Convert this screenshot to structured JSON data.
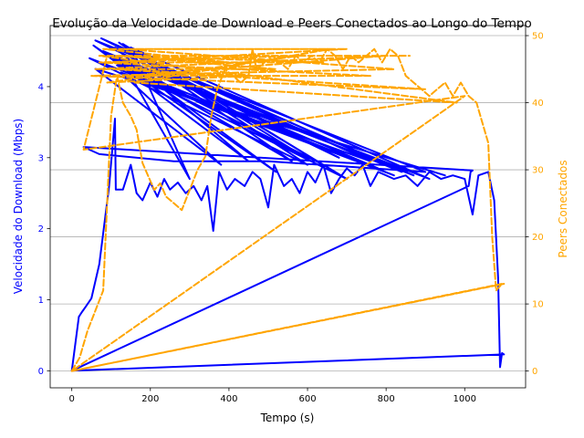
{
  "chart_data": {
    "type": "line",
    "title": "Evolução da Velocidade de Download e Peers Conectados ao Longo do Tempo",
    "xlabel": "Tempo (s)",
    "ylabel": "Velocidade do Download (Mbps)",
    "y2label": "Peers Conectados",
    "xlim": [
      -55,
      1155
    ],
    "ylim": [
      -0.24,
      4.86
    ],
    "y2lim": [
      -2.5,
      51.5
    ],
    "x_ticks": [
      0,
      200,
      400,
      600,
      800,
      1000
    ],
    "y_ticks": [
      0,
      1,
      2,
      3,
      4
    ],
    "y2_ticks": [
      0,
      10,
      20,
      30,
      40,
      50
    ],
    "grid": "horizontal, right axis",
    "colors": {
      "speed": "#0000ff",
      "peers": "#ffa500",
      "grid": "#b0b0b0"
    },
    "series": [
      {
        "key": "speed",
        "axis": "left",
        "style": "solid",
        "points": [
          [
            0,
            0.0
          ],
          [
            18,
            0.76
          ],
          [
            25,
            0.82
          ],
          [
            35,
            0.9
          ],
          [
            50,
            1.02
          ],
          [
            70,
            1.5
          ],
          [
            95,
            2.6
          ],
          [
            110,
            3.55
          ],
          [
            112,
            2.55
          ],
          [
            130,
            2.55
          ],
          [
            150,
            2.9
          ],
          [
            165,
            2.5
          ],
          [
            180,
            2.4
          ],
          [
            200,
            2.65
          ],
          [
            218,
            2.45
          ],
          [
            235,
            2.7
          ],
          [
            250,
            2.55
          ],
          [
            270,
            2.65
          ],
          [
            290,
            2.5
          ],
          [
            310,
            2.6
          ],
          [
            330,
            2.4
          ],
          [
            345,
            2.6
          ],
          [
            360,
            1.97
          ],
          [
            375,
            2.8
          ],
          [
            395,
            2.55
          ],
          [
            415,
            2.7
          ],
          [
            440,
            2.6
          ],
          [
            460,
            2.8
          ],
          [
            480,
            2.7
          ],
          [
            500,
            2.3
          ],
          [
            515,
            2.9
          ],
          [
            540,
            2.6
          ],
          [
            560,
            2.7
          ],
          [
            580,
            2.5
          ],
          [
            600,
            2.8
          ],
          [
            620,
            2.65
          ],
          [
            640,
            2.9
          ],
          [
            660,
            2.5
          ],
          [
            680,
            2.7
          ],
          [
            700,
            2.85
          ],
          [
            720,
            2.75
          ],
          [
            740,
            2.9
          ],
          [
            760,
            2.6
          ],
          [
            780,
            2.8
          ],
          [
            800,
            2.75
          ],
          [
            820,
            2.7
          ],
          [
            850,
            2.75
          ],
          [
            880,
            2.6
          ],
          [
            910,
            2.8
          ],
          [
            940,
            2.7
          ],
          [
            970,
            2.75
          ],
          [
            1000,
            2.7
          ],
          [
            1020,
            2.2
          ],
          [
            1035,
            2.75
          ],
          [
            1060,
            2.8
          ],
          [
            1075,
            2.4
          ],
          [
            1085,
            1.3
          ],
          [
            1090,
            0.05
          ],
          [
            1095,
            0.25
          ],
          [
            1100,
            0.23
          ],
          [
            0,
            0.0
          ],
          [
            1010,
            2.6
          ],
          [
            1015,
            2.8
          ],
          [
            1020,
            2.82
          ],
          [
            30,
            3.15
          ],
          [
            70,
            3.05
          ],
          [
            260,
            2.95
          ],
          [
            500,
            2.95
          ],
          [
            900,
            2.8
          ],
          [
            60,
            4.65
          ],
          [
            680,
            3.0
          ],
          [
            75,
            4.68
          ],
          [
            840,
            2.8
          ],
          [
            80,
            4.5
          ],
          [
            610,
            2.95
          ],
          [
            120,
            4.62
          ],
          [
            560,
            2.95
          ],
          [
            90,
            4.45
          ],
          [
            910,
            2.7
          ],
          [
            150,
            4.55
          ],
          [
            640,
            2.9
          ],
          [
            100,
            4.4
          ],
          [
            870,
            2.75
          ],
          [
            110,
            4.55
          ],
          [
            450,
            2.95
          ],
          [
            55,
            4.58
          ],
          [
            520,
            2.8
          ],
          [
            140,
            4.35
          ],
          [
            780,
            2.85
          ],
          [
            45,
            4.4
          ],
          [
            600,
            2.9
          ],
          [
            130,
            4.6
          ],
          [
            700,
            2.7
          ],
          [
            115,
            4.3
          ],
          [
            820,
            2.75
          ],
          [
            150,
            4.15
          ],
          [
            300,
            2.7
          ],
          [
            160,
            4.45
          ],
          [
            760,
            2.95
          ],
          [
            125,
            4.2
          ],
          [
            380,
            2.9
          ],
          [
            60,
            4.25
          ],
          [
            950,
            2.75
          ]
        ]
      },
      {
        "key": "peers",
        "axis": "right",
        "style": "dashed",
        "points": [
          [
            0,
            0
          ],
          [
            20,
            2
          ],
          [
            40,
            6
          ],
          [
            60,
            9
          ],
          [
            80,
            12
          ],
          [
            100,
            38
          ],
          [
            115,
            44
          ],
          [
            130,
            40
          ],
          [
            150,
            38
          ],
          [
            165,
            36
          ],
          [
            180,
            31
          ],
          [
            195,
            29
          ],
          [
            210,
            27
          ],
          [
            225,
            28
          ],
          [
            240,
            26
          ],
          [
            260,
            25
          ],
          [
            280,
            24
          ],
          [
            300,
            27
          ],
          [
            320,
            30
          ],
          [
            340,
            32
          ],
          [
            355,
            38
          ],
          [
            370,
            42
          ],
          [
            390,
            45
          ],
          [
            410,
            44
          ],
          [
            430,
            43
          ],
          [
            450,
            44
          ],
          [
            460,
            48
          ],
          [
            470,
            45
          ],
          [
            490,
            46
          ],
          [
            510,
            47
          ],
          [
            530,
            46
          ],
          [
            550,
            45
          ],
          [
            570,
            47
          ],
          [
            590,
            46
          ],
          [
            610,
            47
          ],
          [
            630,
            46
          ],
          [
            650,
            48
          ],
          [
            670,
            47
          ],
          [
            690,
            45
          ],
          [
            710,
            47
          ],
          [
            730,
            46
          ],
          [
            750,
            47
          ],
          [
            770,
            48
          ],
          [
            790,
            46
          ],
          [
            810,
            48
          ],
          [
            830,
            47
          ],
          [
            850,
            44
          ],
          [
            870,
            43
          ],
          [
            890,
            42
          ],
          [
            910,
            41
          ],
          [
            930,
            42
          ],
          [
            950,
            43
          ],
          [
            970,
            41
          ],
          [
            990,
            43
          ],
          [
            1010,
            41
          ],
          [
            1030,
            40
          ],
          [
            1060,
            34
          ],
          [
            1070,
            20
          ],
          [
            1080,
            12
          ],
          [
            1095,
            13
          ],
          [
            0,
            0
          ],
          [
            1100,
            13
          ],
          [
            0,
            0
          ],
          [
            1000,
            41
          ],
          [
            30,
            33
          ],
          [
            90,
            47
          ],
          [
            400,
            46
          ],
          [
            80,
            48
          ],
          [
            700,
            48
          ],
          [
            100,
            46
          ],
          [
            640,
            46
          ],
          [
            120,
            47
          ],
          [
            520,
            45
          ],
          [
            60,
            45
          ],
          [
            800,
            47
          ],
          [
            140,
            44
          ],
          [
            760,
            44
          ],
          [
            70,
            46
          ],
          [
            580,
            47
          ],
          [
            90,
            43
          ],
          [
            450,
            44
          ],
          [
            110,
            45
          ],
          [
            900,
            42
          ],
          [
            50,
            44
          ],
          [
            820,
            45
          ],
          [
            130,
            48
          ],
          [
            660,
            48
          ],
          [
            160,
            43
          ],
          [
            980,
            40
          ],
          [
            70,
            47
          ],
          [
            860,
            47
          ]
        ]
      }
    ]
  }
}
